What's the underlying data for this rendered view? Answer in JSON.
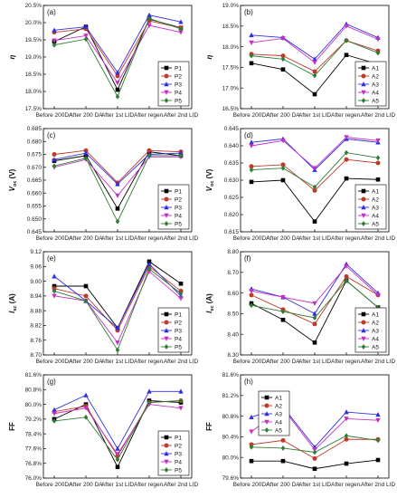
{
  "colors": {
    "P1": "#000000",
    "P2": "#c0392b",
    "P3": "#2f2fe0",
    "P4": "#c430c4",
    "P5": "#2e7d32",
    "A1": "#000000",
    "A2": "#c0392b",
    "A3": "#2f2fe0",
    "A4": "#c430c4",
    "A5": "#2e7d32"
  },
  "chart_data": [
    {
      "panel": "(a)",
      "type": "line",
      "ylabel": "η",
      "ylim": [
        17.5,
        20.5
      ],
      "yticks": [
        "17.5%",
        "18.0%",
        "18.5%",
        "19.0%",
        "19.5%",
        "20.0%",
        "20.5%"
      ],
      "ytickvals": [
        17.5,
        18.0,
        18.5,
        19.0,
        19.5,
        20.0,
        20.5
      ],
      "categories": [
        "Before 200DA",
        "After 200 DA",
        "After 1st LID",
        "After regen.",
        "After 2nd LID"
      ],
      "legend_position": "right",
      "series": [
        {
          "name": "P1",
          "values": [
            19.45,
            19.88,
            18.05,
            20.1,
            19.85
          ]
        },
        {
          "name": "P2",
          "values": [
            19.72,
            19.82,
            18.45,
            20.05,
            19.85
          ]
        },
        {
          "name": "P3",
          "values": [
            19.78,
            19.88,
            18.55,
            20.22,
            20.02
          ]
        },
        {
          "name": "P4",
          "values": [
            19.48,
            19.62,
            18.25,
            19.92,
            19.72
          ]
        },
        {
          "name": "P5",
          "values": [
            19.35,
            19.52,
            17.85,
            20.12,
            19.82
          ]
        }
      ]
    },
    {
      "panel": "(b)",
      "type": "line",
      "ylabel": "η",
      "ylim": [
        16.5,
        19.0
      ],
      "yticks": [
        "16.5%",
        "17.0%",
        "17.5%",
        "18.0%",
        "18.5%",
        "19.0%"
      ],
      "ytickvals": [
        16.5,
        17.0,
        17.5,
        18.0,
        18.5,
        19.0
      ],
      "categories": [
        "Before 200DA",
        "After 200 DA",
        "After 1st LID",
        "After regen.",
        "After 2nd LID"
      ],
      "legend_position": "right",
      "series": [
        {
          "name": "A1",
          "values": [
            17.6,
            17.45,
            16.85,
            17.8,
            17.58
          ]
        },
        {
          "name": "A2",
          "values": [
            17.82,
            17.78,
            17.4,
            18.15,
            17.9
          ]
        },
        {
          "name": "A3",
          "values": [
            18.28,
            18.22,
            17.7,
            18.55,
            18.22
          ]
        },
        {
          "name": "A4",
          "values": [
            18.1,
            18.2,
            17.62,
            18.5,
            18.18
          ]
        },
        {
          "name": "A5",
          "values": [
            17.78,
            17.7,
            17.3,
            18.15,
            17.85
          ]
        }
      ]
    },
    {
      "panel": "(c)",
      "type": "line",
      "ylabel": "Voc (V)",
      "ylim": [
        0.645,
        0.685
      ],
      "yticks": [
        "0.645",
        "0.650",
        "0.655",
        "0.660",
        "0.665",
        "0.670",
        "0.675",
        "0.680",
        "0.685"
      ],
      "ytickvals": [
        0.645,
        0.65,
        0.655,
        0.66,
        0.665,
        0.67,
        0.675,
        0.68,
        0.685
      ],
      "categories": [
        "Before 200DA",
        "After 200 DA",
        "After 1st LID",
        "After regen.",
        "After 2nd LID"
      ],
      "legend_position": "right",
      "series": [
        {
          "name": "P1",
          "values": [
            0.6725,
            0.6745,
            0.654,
            0.676,
            0.6745
          ]
        },
        {
          "name": "P2",
          "values": [
            0.675,
            0.6765,
            0.664,
            0.6765,
            0.676
          ]
        },
        {
          "name": "P3",
          "values": [
            0.673,
            0.6755,
            0.6635,
            0.675,
            0.6755
          ]
        },
        {
          "name": "P4",
          "values": [
            0.67,
            0.673,
            0.659,
            0.674,
            0.674
          ]
        },
        {
          "name": "P5",
          "values": [
            0.6705,
            0.6735,
            0.649,
            0.6745,
            0.6745
          ]
        }
      ]
    },
    {
      "panel": "(d)",
      "type": "line",
      "ylabel": "Voc (V)",
      "ylim": [
        0.615,
        0.645
      ],
      "yticks": [
        "0.615",
        "0.620",
        "0.625",
        "0.630",
        "0.635",
        "0.640",
        "0.645"
      ],
      "ytickvals": [
        0.615,
        0.62,
        0.625,
        0.63,
        0.635,
        0.64,
        0.645
      ],
      "categories": [
        "Before 200DA",
        "After 200 DA",
        "After 1st LID",
        "After regen.",
        "After 2nd LID"
      ],
      "legend_position": "right",
      "series": [
        {
          "name": "A1",
          "values": [
            0.6295,
            0.63,
            0.618,
            0.6305,
            0.6302
          ]
        },
        {
          "name": "A2",
          "values": [
            0.634,
            0.6345,
            0.627,
            0.636,
            0.635
          ]
        },
        {
          "name": "A3",
          "values": [
            0.641,
            0.642,
            0.633,
            0.642,
            0.641
          ]
        },
        {
          "name": "A4",
          "values": [
            0.64,
            0.6415,
            0.6335,
            0.6425,
            0.6415
          ]
        },
        {
          "name": "A5",
          "values": [
            0.633,
            0.6335,
            0.628,
            0.638,
            0.6365
          ]
        }
      ]
    },
    {
      "panel": "(e)",
      "type": "line",
      "ylabel": "Isc (A)",
      "ylim": [
        8.7,
        9.12
      ],
      "yticks": [
        "8.70",
        "8.76",
        "8.82",
        "8.88",
        "8.94",
        "9.00",
        "9.06",
        "9.12"
      ],
      "ytickvals": [
        8.7,
        8.76,
        8.82,
        8.88,
        8.94,
        9.0,
        9.06,
        9.12
      ],
      "categories": [
        "Before 200DA",
        "After 200 DA",
        "After 1st LID",
        "After regen.",
        "After 2nd LID"
      ],
      "legend_position": "right",
      "series": [
        {
          "name": "P1",
          "values": [
            8.98,
            8.98,
            8.81,
            9.08,
            8.99
          ]
        },
        {
          "name": "P2",
          "values": [
            8.97,
            8.94,
            8.8,
            9.06,
            8.96
          ]
        },
        {
          "name": "P3",
          "values": [
            9.02,
            8.92,
            8.81,
            9.07,
            8.94
          ]
        },
        {
          "name": "P4",
          "values": [
            8.94,
            8.92,
            8.75,
            9.04,
            8.93
          ]
        },
        {
          "name": "P5",
          "values": [
            8.96,
            8.92,
            8.72,
            9.05,
            8.95
          ]
        }
      ]
    },
    {
      "panel": "(f)",
      "type": "line",
      "ylabel": "Isc (A)",
      "ylim": [
        8.3,
        8.8
      ],
      "yticks": [
        "8.30",
        "8.40",
        "8.50",
        "8.60",
        "8.70",
        "8.80"
      ],
      "ytickvals": [
        8.3,
        8.4,
        8.5,
        8.6,
        8.7,
        8.8
      ],
      "categories": [
        "Before 200DA",
        "After 200 DA",
        "After 1st LID",
        "After regen.",
        "After 2nd LID"
      ],
      "legend_position": "right",
      "series": [
        {
          "name": "A1",
          "values": [
            8.55,
            8.47,
            8.36,
            8.66,
            8.53
          ]
        },
        {
          "name": "A2",
          "values": [
            8.59,
            8.52,
            8.45,
            8.68,
            8.59
          ]
        },
        {
          "name": "A3",
          "values": [
            8.62,
            8.58,
            8.5,
            8.74,
            8.6
          ]
        },
        {
          "name": "A4",
          "values": [
            8.61,
            8.58,
            8.55,
            8.73,
            8.59
          ]
        },
        {
          "name": "A5",
          "values": [
            8.54,
            8.51,
            8.48,
            8.66,
            8.53
          ]
        }
      ]
    },
    {
      "panel": "(g)",
      "type": "line",
      "ylabel": "FF",
      "ylim": [
        76.0,
        81.6
      ],
      "yticks": [
        "76.0%",
        "76.8%",
        "77.6%",
        "78.4%",
        "79.2%",
        "80.0%",
        "80.8%",
        "81.6%"
      ],
      "ytickvals": [
        76.0,
        76.8,
        77.6,
        78.4,
        79.2,
        80.0,
        80.8,
        81.6
      ],
      "categories": [
        "Before 200DA",
        "After 200 DA",
        "After 1st LID",
        "After regen.",
        "After 2nd LID"
      ],
      "legend_position": "right",
      "series": [
        {
          "name": "P1",
          "values": [
            79.2,
            80.0,
            76.6,
            80.2,
            80.1
          ]
        },
        {
          "name": "P2",
          "values": [
            79.6,
            79.9,
            77.2,
            80.1,
            80.2
          ]
        },
        {
          "name": "P3",
          "values": [
            79.7,
            80.5,
            77.6,
            80.7,
            80.7
          ]
        },
        {
          "name": "P4",
          "values": [
            79.5,
            79.8,
            77.3,
            80.0,
            79.8
          ]
        },
        {
          "name": "P5",
          "values": [
            79.1,
            79.3,
            77.0,
            80.1,
            80.2
          ]
        }
      ]
    },
    {
      "panel": "(h)",
      "type": "line",
      "ylabel": "FF",
      "ylim": [
        79.6,
        81.6
      ],
      "yticks": [
        "79.6%",
        "80.0%",
        "80.4%",
        "80.8%",
        "81.2%",
        "81.6%"
      ],
      "ytickvals": [
        79.6,
        80.0,
        80.4,
        80.8,
        81.2,
        81.6
      ],
      "categories": [
        "Before 200DA",
        "After 200 DA",
        "After 1st LID",
        "After regen.",
        "After 2nd LID"
      ],
      "legend_position": "left",
      "series": [
        {
          "name": "A1",
          "values": [
            79.93,
            79.93,
            79.78,
            79.88,
            79.95
          ]
        },
        {
          "name": "A2",
          "values": [
            80.25,
            80.33,
            79.98,
            80.35,
            80.35
          ]
        },
        {
          "name": "A3",
          "values": [
            80.78,
            80.98,
            80.2,
            80.88,
            80.83
          ]
        },
        {
          "name": "A4",
          "values": [
            80.5,
            80.95,
            80.15,
            80.75,
            80.72
          ]
        },
        {
          "name": "A5",
          "values": [
            80.2,
            80.18,
            80.1,
            80.42,
            80.33
          ]
        }
      ]
    }
  ]
}
